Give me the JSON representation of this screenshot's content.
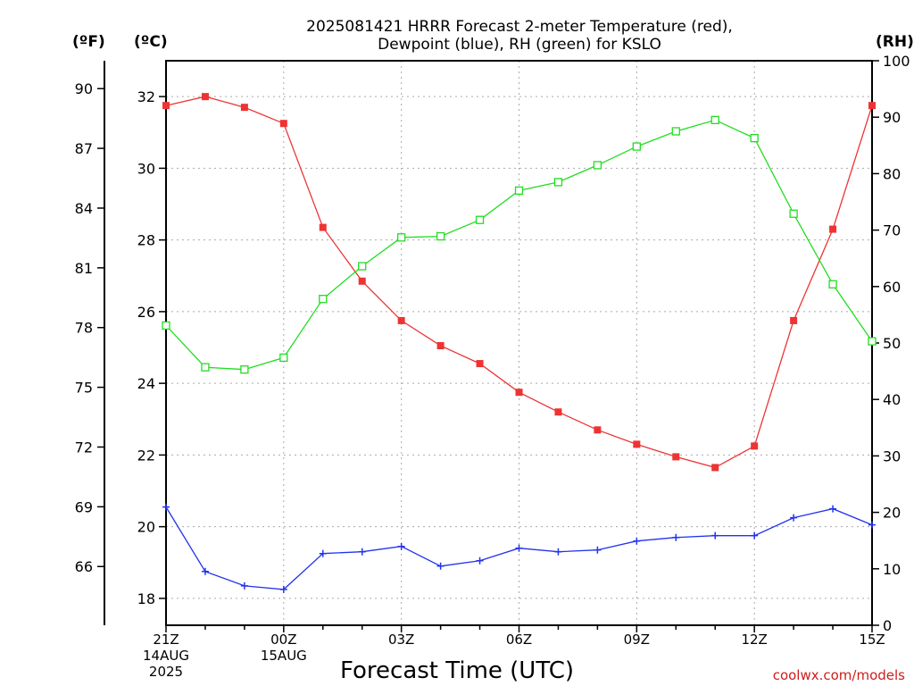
{
  "chart_data": {
    "type": "line",
    "title_line1": "2025081421 HRRR Forecast 2-meter Temperature (red),",
    "title_line2": "Dewpoint (blue), RH (green) for KSLO",
    "xlabel": "Forecast Time (UTC)",
    "credit": "coolwx.com/models",
    "units": {
      "fahrenheit": "(ºF)",
      "celsius": "(ºC)",
      "rh": "(RH)"
    },
    "x_hours": [
      0,
      1,
      2,
      3,
      4,
      5,
      6,
      7,
      8,
      9,
      10,
      11,
      12,
      13,
      14,
      15,
      16,
      17,
      18
    ],
    "x_ticks": [
      {
        "hour": 0,
        "lines": [
          "21Z",
          "14AUG",
          "2025"
        ]
      },
      {
        "hour": 3,
        "lines": [
          "00Z",
          "15AUG"
        ]
      },
      {
        "hour": 6,
        "lines": [
          "03Z"
        ]
      },
      {
        "hour": 9,
        "lines": [
          "06Z"
        ]
      },
      {
        "hour": 12,
        "lines": [
          "09Z"
        ]
      },
      {
        "hour": 15,
        "lines": [
          "12Z"
        ]
      },
      {
        "hour": 18,
        "lines": [
          "15Z"
        ]
      }
    ],
    "celsius_axis": {
      "min": 17.25,
      "max": 33,
      "ticks": [
        18,
        20,
        22,
        24,
        26,
        28,
        30,
        32
      ],
      "labels": [
        "18",
        "20",
        "22",
        "24",
        "26",
        "28",
        "30",
        "32"
      ]
    },
    "fahrenheit_axis": {
      "min": 63.05,
      "max": 91.4,
      "ticks": [
        66,
        69,
        72,
        75,
        78,
        81,
        84,
        87,
        90
      ],
      "labels": [
        "66",
        "69",
        "72",
        "75",
        "78",
        "81",
        "84",
        "87",
        "90"
      ]
    },
    "rh_axis": {
      "min": 0,
      "max": 100,
      "ticks": [
        0,
        10,
        20,
        30,
        40,
        50,
        60,
        70,
        80,
        90,
        100
      ],
      "labels": [
        "0",
        "10",
        "20",
        "30",
        "40",
        "50",
        "60",
        "70",
        "80",
        "90",
        "100"
      ]
    },
    "grid": true,
    "series": [
      {
        "name": "Temperature",
        "axis": "celsius",
        "color": "#ee3333",
        "marker": "filled-square",
        "values": [
          31.75,
          32.0,
          31.7,
          31.25,
          28.35,
          26.85,
          25.75,
          25.05,
          24.55,
          23.75,
          23.2,
          22.7,
          22.3,
          21.95,
          21.65,
          22.25,
          25.75,
          28.3,
          31.75
        ]
      },
      {
        "name": "Dewpoint",
        "axis": "celsius",
        "color": "#2233ee",
        "marker": "plus",
        "values": [
          20.55,
          18.75,
          18.35,
          18.25,
          19.25,
          19.3,
          19.45,
          18.9,
          19.05,
          19.4,
          19.3,
          19.35,
          19.6,
          19.7,
          19.75,
          19.75,
          20.25,
          20.5,
          20.05
        ]
      },
      {
        "name": "RH",
        "axis": "rh",
        "color": "#22dd22",
        "marker": "open-square",
        "values": [
          53.1,
          45.7,
          45.3,
          47.4,
          57.8,
          63.6,
          68.7,
          68.9,
          71.8,
          77.0,
          78.5,
          81.5,
          84.8,
          87.5,
          89.5,
          86.3,
          72.9,
          60.4,
          50.3
        ]
      }
    ]
  }
}
